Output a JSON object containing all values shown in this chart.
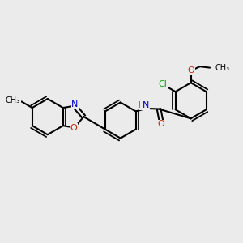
{
  "bg_color": "#ebebeb",
  "bond_color": "#000000",
  "bond_width": 1.5,
  "atom_colors": {
    "N": "#0000cc",
    "O": "#cc2200",
    "Cl": "#00aa00",
    "C": "#000000",
    "H": "#448888"
  },
  "font_size": 8,
  "fig_size": [
    3.0,
    3.0
  ],
  "dpi": 100
}
